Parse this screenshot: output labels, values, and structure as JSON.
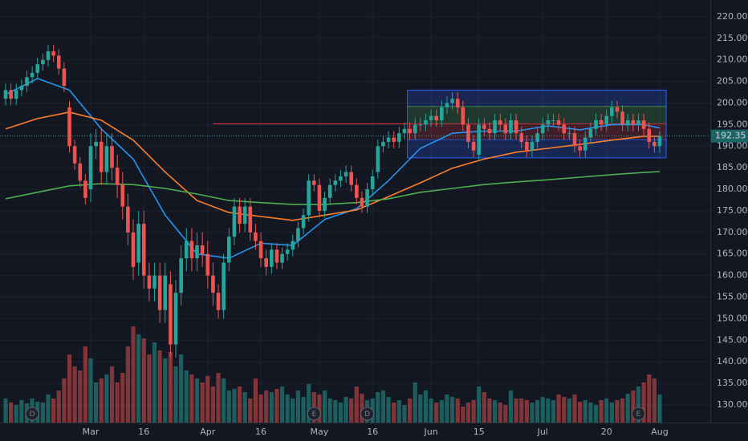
{
  "chart_data": {
    "type": "candlestick",
    "categories": [
      null,
      null,
      null,
      null,
      null,
      null,
      null,
      null,
      null,
      null,
      null,
      null,
      null,
      null,
      null,
      null,
      "Mar",
      null,
      null,
      null,
      null,
      null,
      null,
      null,
      null,
      null,
      "16",
      null,
      null,
      null,
      null,
      null,
      null,
      null,
      null,
      null,
      null,
      null,
      "Apr",
      null,
      null,
      null,
      null,
      null,
      null,
      null,
      null,
      null,
      "16",
      null,
      null,
      null,
      null,
      null,
      null,
      null,
      null,
      null,
      null,
      "May",
      null,
      null,
      null,
      null,
      null,
      null,
      null,
      null,
      null,
      "16",
      null,
      null,
      null,
      null,
      null,
      null,
      null,
      null,
      null,
      null,
      "Jun",
      null,
      null,
      null,
      null,
      null,
      null,
      null,
      null,
      "15",
      null,
      null,
      null,
      null,
      null,
      null,
      null,
      null,
      null,
      null,
      null,
      "Jul",
      null,
      null,
      null,
      null,
      null,
      null,
      null,
      null,
      null,
      null,
      null,
      "20",
      null,
      null,
      null,
      null,
      null,
      null,
      null,
      null,
      null,
      "Aug"
    ],
    "open": [
      201,
      203,
      201,
      203,
      204,
      206,
      207,
      209,
      210,
      212,
      211,
      208,
      199,
      190,
      186,
      182,
      180,
      190,
      191,
      184,
      190,
      185,
      181,
      176,
      170,
      163,
      172,
      160,
      157,
      160,
      152,
      158,
      144,
      156,
      164,
      168,
      164,
      167,
      165,
      160,
      156,
      152,
      163,
      169,
      176,
      172,
      176,
      170,
      168,
      164,
      162,
      166,
      163,
      165,
      166,
      168,
      171,
      174,
      182,
      181,
      175,
      178,
      181,
      182,
      183,
      184,
      181,
      178,
      176,
      180,
      184,
      190,
      191,
      192,
      191,
      193,
      194,
      193,
      195,
      195,
      196,
      197,
      196,
      199,
      200,
      201,
      199,
      195,
      191,
      188,
      195,
      194,
      193,
      196,
      195,
      193,
      196,
      193,
      191,
      189,
      191,
      193,
      195,
      196,
      196,
      195,
      193,
      193,
      190,
      189,
      192,
      194,
      196,
      195,
      197,
      199,
      198,
      195,
      196,
      195,
      196,
      194,
      191,
      190
    ],
    "high": [
      204.5,
      204.5,
      204.5,
      205.5,
      207.5,
      208.5,
      210.5,
      211.5,
      213.5,
      213.5,
      212.5,
      209.5,
      200.5,
      191.5,
      187.5,
      183.5,
      193,
      194,
      194,
      193,
      193,
      188,
      184,
      179,
      173,
      175,
      175,
      163,
      163,
      163,
      163,
      161,
      159,
      167,
      171,
      171,
      170,
      170,
      168,
      163,
      158,
      165,
      171,
      178,
      178,
      178,
      178,
      172,
      170,
      166,
      167.5,
      167.5,
      166.5,
      167.5,
      169.5,
      172.5,
      175.5,
      183.5,
      183.5,
      182.5,
      179.5,
      182.5,
      183.5,
      184.5,
      185.5,
      185.5,
      182.5,
      179.5,
      181.5,
      184.5,
      191.5,
      192.5,
      193.5,
      193.5,
      194.5,
      195.5,
      195.5,
      196.5,
      196.5,
      197.5,
      198.5,
      198.5,
      200.5,
      201.5,
      202.5,
      202.5,
      200.5,
      196.5,
      192.5,
      196.5,
      196.5,
      195.5,
      197.5,
      197.5,
      196.5,
      197.5,
      197.5,
      194.5,
      192.5,
      192.5,
      194.5,
      196.5,
      197.5,
      197.5,
      197.5,
      196.5,
      194.5,
      194.5,
      191.5,
      193.5,
      195.5,
      197.5,
      197.5,
      198.5,
      200.5,
      200.5,
      199.5,
      197.5,
      197.5,
      197.5,
      197.5,
      195.5,
      192.5,
      193.5
    ],
    "low": [
      199.5,
      199.5,
      199.5,
      201.5,
      202.5,
      204.5,
      205.5,
      207.5,
      208.5,
      209.5,
      206.5,
      202.5,
      188.5,
      184.5,
      180.5,
      176.5,
      177,
      187,
      181,
      181,
      182,
      178,
      173,
      167,
      159,
      160,
      157,
      154,
      154,
      149,
      149,
      141,
      141,
      153,
      161,
      161,
      161,
      162,
      157,
      153,
      150,
      150,
      161,
      167,
      170,
      170,
      168,
      166,
      162,
      160,
      160.5,
      161.5,
      161.5,
      163.5,
      164.5,
      166.5,
      169.5,
      172.5,
      179.5,
      173.5,
      173.5,
      176.5,
      179.5,
      180.5,
      181.5,
      179.5,
      176.5,
      174.5,
      174.5,
      178.5,
      182.5,
      188.5,
      189.5,
      189.5,
      189.5,
      191.5,
      191.5,
      191.5,
      193.5,
      193.5,
      194.5,
      194.5,
      194.5,
      197.5,
      198.5,
      197.5,
      193.5,
      189.5,
      187.5,
      186.5,
      192.5,
      191.5,
      191.5,
      193.5,
      191.5,
      191.5,
      191.5,
      189.5,
      187.5,
      187.5,
      189.5,
      191.5,
      193.5,
      194.5,
      193.5,
      191.5,
      191.5,
      188.5,
      187.5,
      187.5,
      190.5,
      192.5,
      193.5,
      193.5,
      195.5,
      196.5,
      193.5,
      193.5,
      193.5,
      193.5,
      192.5,
      189.5,
      188.5,
      188.5
    ],
    "close": [
      203,
      201,
      203,
      204,
      206,
      207,
      209,
      210,
      212,
      211,
      208,
      204,
      190,
      186,
      182,
      178,
      190,
      191,
      184,
      190,
      185,
      181,
      176,
      170,
      162,
      172,
      160,
      157,
      160,
      152,
      160,
      144,
      156,
      164,
      168,
      164,
      167,
      165,
      160,
      156,
      152,
      163,
      169,
      176,
      172,
      176,
      170,
      168,
      164,
      162,
      166,
      163,
      165,
      166,
      168,
      171,
      174,
      182,
      181,
      175,
      178,
      181,
      182,
      183,
      184,
      181,
      178,
      176,
      180,
      183,
      190,
      191,
      192,
      191,
      193,
      194,
      193,
      195,
      195,
      196,
      197,
      196,
      199,
      200,
      201,
      199,
      195,
      191,
      189,
      195,
      194,
      193,
      196,
      195,
      193,
      196,
      193,
      191,
      189,
      191,
      193,
      195,
      196,
      196,
      195,
      193,
      193,
      190,
      189,
      192,
      194,
      196,
      195,
      197,
      199,
      198,
      195,
      196,
      195,
      196,
      194,
      191,
      190,
      192.35
    ],
    "volume": [
      30,
      25,
      22,
      28,
      24,
      30,
      26,
      25,
      35,
      30,
      40,
      55,
      85,
      70,
      65,
      95,
      80,
      50,
      55,
      60,
      70,
      50,
      62,
      95,
      120,
      110,
      105,
      85,
      100,
      90,
      80,
      88,
      70,
      85,
      65,
      60,
      55,
      50,
      58,
      45,
      62,
      55,
      40,
      42,
      45,
      38,
      30,
      55,
      35,
      40,
      38,
      42,
      45,
      35,
      30,
      40,
      32,
      48,
      38,
      35,
      40,
      30,
      28,
      25,
      32,
      30,
      45,
      36,
      28,
      30,
      38,
      40,
      32,
      25,
      28,
      22,
      30,
      50,
      35,
      40,
      30,
      25,
      28,
      35,
      32,
      30,
      20,
      25,
      28,
      45,
      38,
      30,
      28,
      25,
      22,
      40,
      30,
      30,
      28,
      25,
      28,
      32,
      30,
      28,
      35,
      32,
      30,
      35,
      26,
      28,
      25,
      22,
      28,
      30,
      25,
      28,
      30,
      36,
      40,
      45,
      50,
      60,
      55,
      35
    ],
    "up_color": "#26a69a",
    "down_color": "#ef5350",
    "moving_averages": [
      {
        "color": "#2196f3",
        "x": [
          0,
          6,
          12,
          18,
          24,
          30,
          36,
          42,
          48,
          54,
          60,
          66,
          72,
          78,
          84,
          90,
          96,
          102,
          108,
          114,
          120,
          123
        ],
        "values": [
          202,
          205.7,
          203,
          194,
          187,
          174,
          165,
          164,
          167.5,
          167,
          173,
          175.5,
          182,
          189.5,
          193,
          193.5,
          193.5,
          194.7,
          193.8,
          195,
          195,
          194.2
        ]
      },
      {
        "color": "#ff7f27",
        "x": [
          0,
          6,
          12,
          18,
          24,
          30,
          36,
          42,
          48,
          54,
          60,
          66,
          72,
          78,
          84,
          90,
          96,
          102,
          108,
          114,
          120,
          123
        ],
        "values": [
          194,
          196.4,
          197.9,
          196,
          191.4,
          184,
          177.4,
          174.6,
          173.7,
          172.8,
          174,
          175.2,
          178.3,
          181.5,
          184.9,
          187,
          188.6,
          189.5,
          190.4,
          191.4,
          192.3,
          192.3
        ]
      },
      {
        "color": "#4caf50",
        "x": [
          0,
          6,
          12,
          18,
          24,
          30,
          36,
          42,
          48,
          54,
          60,
          66,
          72,
          78,
          84,
          90,
          96,
          102,
          108,
          114,
          120,
          123
        ],
        "values": [
          177.8,
          179.3,
          180.8,
          181.3,
          181.1,
          180.2,
          178.9,
          177.4,
          176.9,
          176.5,
          176.5,
          176.9,
          177.8,
          179.3,
          180.2,
          181.1,
          181.7,
          182.2,
          182.8,
          183.4,
          183.9,
          184.1
        ]
      }
    ],
    "range_box": {
      "top": 203,
      "target": 199.2,
      "entry": 195.2,
      "stop": 191.5,
      "bottom": 187.3
    },
    "hline": 195.2,
    "last_price": 192.35,
    "events": [
      {
        "label": "D",
        "index": 5
      },
      {
        "label": "E",
        "index": 58
      },
      {
        "label": "D",
        "index": 68
      },
      {
        "label": "E",
        "index": 119
      }
    ],
    "ylim": [
      125.9,
      223.9
    ],
    "vlim": [
      0,
      120
    ],
    "yticks": [
      {
        "value": 130,
        "label": "130.00"
      },
      {
        "value": 135,
        "label": "135.00"
      },
      {
        "value": 140,
        "label": "140.00"
      },
      {
        "value": 145,
        "label": "145.00"
      },
      {
        "value": 150,
        "label": "150.00"
      },
      {
        "value": 155,
        "label": "155.00"
      },
      {
        "value": 160,
        "label": "160.00"
      },
      {
        "value": 165,
        "label": "165.00"
      },
      {
        "value": 170,
        "label": "170.00"
      },
      {
        "value": 175,
        "label": "175.00"
      },
      {
        "value": 180,
        "label": "180.00"
      },
      {
        "value": 185,
        "label": "185.00"
      },
      {
        "value": 190,
        "label": "190.00"
      },
      {
        "value": 195,
        "label": "195.00"
      },
      {
        "value": 200,
        "label": "200.00"
      },
      {
        "value": 205,
        "label": "205.00"
      },
      {
        "value": 210,
        "label": "210.00"
      },
      {
        "value": 215,
        "label": "215.00"
      },
      {
        "value": 220,
        "label": "220.00"
      }
    ],
    "grid": true
  }
}
